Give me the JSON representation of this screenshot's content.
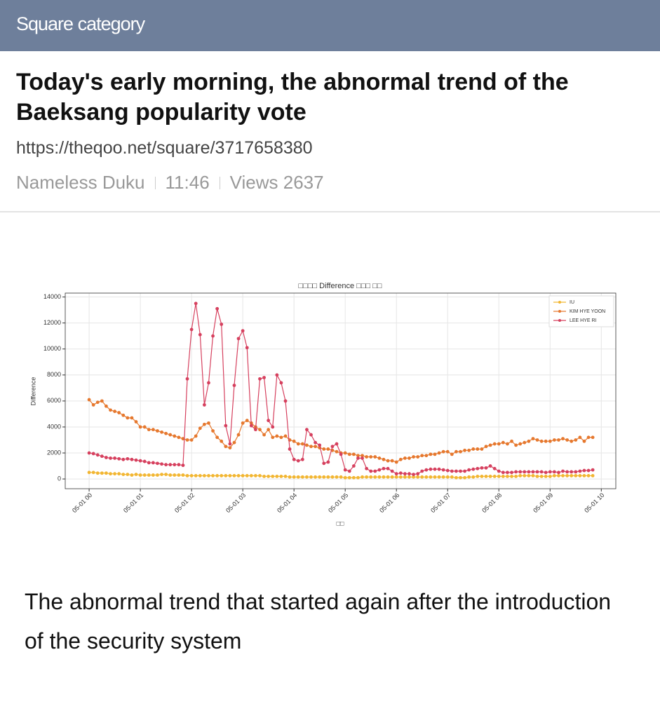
{
  "header": {
    "category": "Square category"
  },
  "post": {
    "title": "Today's early morning, the abnormal trend of the Baeksang popularity vote",
    "url": "https://theqoo.net/square/3717658380",
    "author": "Nameless Duku",
    "time": "11:46",
    "views": "Views 2637"
  },
  "chart_data": {
    "type": "line",
    "title": "□□□□ Difference □□□ □□",
    "xlabel": "□□",
    "ylabel": "Difference",
    "x": [
      0,
      5,
      10,
      15,
      20,
      25,
      30,
      35,
      40,
      45,
      50,
      55,
      60,
      65,
      70,
      75,
      80,
      85,
      90,
      95,
      100,
      105,
      110,
      115,
      120,
      125,
      130,
      135,
      140,
      145,
      150,
      155,
      160,
      165,
      170,
      175,
      180,
      185,
      190,
      195,
      200,
      205,
      210,
      215,
      220,
      225,
      230,
      235,
      240,
      245,
      250,
      255,
      260,
      265,
      270,
      275,
      280,
      285,
      290,
      295,
      300,
      305,
      310,
      315,
      320,
      325,
      330,
      335,
      340,
      345,
      350,
      355,
      360,
      365,
      370,
      375,
      380,
      385,
      390,
      395,
      400,
      405,
      410,
      415,
      420,
      425,
      430,
      435,
      440,
      445,
      450,
      455,
      460,
      465,
      470,
      475,
      480,
      485,
      490,
      495,
      500,
      505,
      510,
      515,
      520,
      525,
      530,
      535,
      540,
      545,
      550,
      555,
      560,
      565,
      570,
      575,
      580,
      585,
      590
    ],
    "series": [
      {
        "name": "IU",
        "color": "#f2b632",
        "values": [
          500,
          500,
          450,
          450,
          450,
          400,
          400,
          400,
          350,
          350,
          300,
          350,
          300,
          300,
          300,
          300,
          300,
          350,
          350,
          300,
          300,
          300,
          300,
          250,
          250,
          250,
          250,
          250,
          250,
          250,
          250,
          250,
          250,
          250,
          250,
          250,
          250,
          250,
          250,
          250,
          250,
          200,
          200,
          200,
          200,
          200,
          200,
          150,
          150,
          150,
          150,
          150,
          150,
          150,
          150,
          150,
          150,
          150,
          150,
          150,
          100,
          100,
          100,
          100,
          150,
          150,
          150,
          150,
          150,
          150,
          150,
          150,
          150,
          150,
          150,
          150,
          150,
          150,
          150,
          150,
          150,
          150,
          150,
          150,
          150,
          150,
          100,
          100,
          100,
          150,
          150,
          200,
          200,
          200,
          200,
          200,
          200,
          200,
          200,
          200,
          200,
          250,
          250,
          250,
          250,
          200,
          200,
          200,
          200,
          250,
          250,
          250,
          250,
          250,
          250,
          250,
          250,
          250,
          250
        ]
      },
      {
        "name": "KIM HYE YOON",
        "color": "#e6782e",
        "values": [
          6100,
          5700,
          5900,
          6000,
          5600,
          5300,
          5200,
          5100,
          4900,
          4700,
          4700,
          4400,
          4000,
          4000,
          3800,
          3800,
          3700,
          3600,
          3500,
          3400,
          3300,
          3200,
          3100,
          3000,
          3000,
          3300,
          3900,
          4200,
          4300,
          3700,
          3200,
          2900,
          2500,
          2400,
          2800,
          3400,
          4300,
          4500,
          4300,
          4000,
          3800,
          3400,
          3800,
          3200,
          3300,
          3200,
          3300,
          3000,
          2900,
          2700,
          2700,
          2600,
          2500,
          2500,
          2400,
          2300,
          2300,
          2200,
          2100,
          2000,
          2000,
          1900,
          1900,
          1800,
          1800,
          1700,
          1700,
          1700,
          1600,
          1500,
          1400,
          1400,
          1300,
          1500,
          1600,
          1600,
          1700,
          1700,
          1800,
          1800,
          1900,
          1900,
          2000,
          2100,
          2100,
          1900,
          2100,
          2100,
          2200,
          2200,
          2300,
          2300,
          2300,
          2500,
          2600,
          2700,
          2700,
          2800,
          2700,
          2900,
          2600,
          2700,
          2800,
          2900,
          3100,
          3000,
          2900,
          2900,
          2900,
          3000,
          3000,
          3100,
          3000,
          2900,
          3000,
          3200,
          2900,
          3200,
          3200
        ]
      },
      {
        "name": "LEE HYE RI",
        "color": "#d6405e",
        "values": [
          2000,
          1950,
          1850,
          1750,
          1650,
          1600,
          1600,
          1550,
          1500,
          1550,
          1500,
          1450,
          1400,
          1350,
          1250,
          1250,
          1200,
          1150,
          1100,
          1100,
          1100,
          1100,
          1050,
          7700,
          11500,
          13500,
          11100,
          5700,
          7400,
          11000,
          13100,
          11900,
          4100,
          2700,
          7200,
          10800,
          11400,
          10100,
          4100,
          3800,
          7700,
          7800,
          4500,
          4000,
          8000,
          7400,
          6000,
          2300,
          1500,
          1400,
          1500,
          3800,
          3400,
          2800,
          2600,
          1200,
          1300,
          2500,
          2700,
          1900,
          700,
          600,
          1000,
          1600,
          1600,
          800,
          600,
          600,
          700,
          800,
          800,
          600,
          400,
          450,
          400,
          400,
          350,
          400,
          600,
          700,
          750,
          750,
          750,
          700,
          650,
          600,
          600,
          600,
          600,
          700,
          750,
          800,
          850,
          850,
          1000,
          800,
          600,
          500,
          500,
          500,
          550,
          550,
          550,
          550,
          550,
          550,
          550,
          500,
          550,
          550,
          500,
          600,
          550,
          550,
          550,
          600,
          650,
          650,
          700
        ]
      }
    ],
    "xlim": [
      -28,
      617
    ],
    "xticks": [
      {
        "value": 0,
        "label": "05-01 00"
      },
      {
        "value": 60,
        "label": "05-01 01"
      },
      {
        "value": 120,
        "label": "05-01 02"
      },
      {
        "value": 180,
        "label": "05-01 03"
      },
      {
        "value": 240,
        "label": "05-01 04"
      },
      {
        "value": 300,
        "label": "05-01 05"
      },
      {
        "value": 360,
        "label": "05-01 06"
      },
      {
        "value": 420,
        "label": "05-01 07"
      },
      {
        "value": 480,
        "label": "05-01 08"
      },
      {
        "value": 540,
        "label": "05-01 09"
      },
      {
        "value": 600,
        "label": "05-01 10"
      }
    ],
    "ylim": [
      -750,
      14300
    ],
    "yticks": [
      0,
      2000,
      4000,
      6000,
      8000,
      10000,
      12000,
      14000
    ],
    "grid": true,
    "legend": "upper right"
  },
  "body": {
    "text": "The abnormal trend that started again after the introduction of the security system"
  }
}
